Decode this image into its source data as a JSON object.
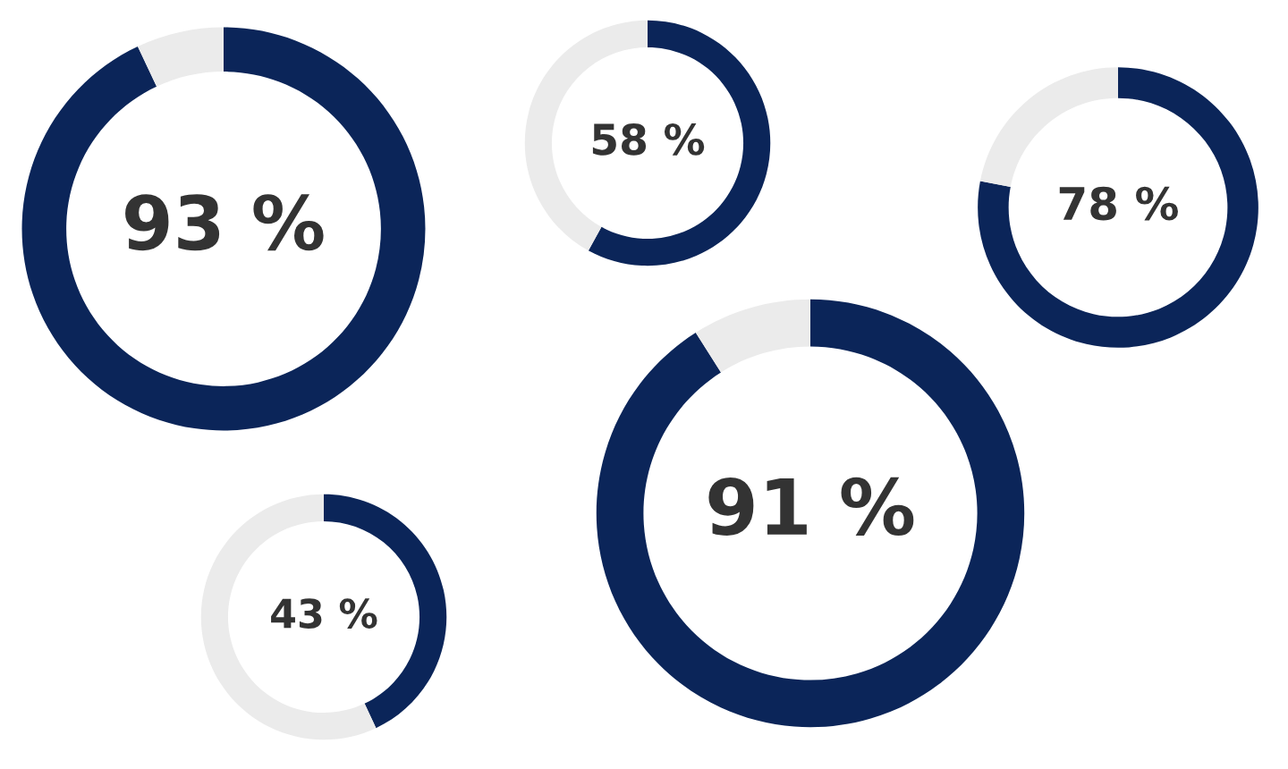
{
  "chart_data": [
    {
      "type": "donut",
      "categories": [
        null,
        null
      ],
      "values": [
        93,
        7
      ],
      "colors": [
        "#0b2559",
        "#ebebeb"
      ],
      "annotations": [
        "93 %"
      ]
    },
    {
      "type": "donut",
      "categories": [
        null,
        null
      ],
      "values": [
        58,
        42
      ],
      "colors": [
        "#0b2559",
        "#ebebeb"
      ],
      "annotations": [
        "58 %"
      ]
    },
    {
      "type": "donut",
      "categories": [
        null,
        null
      ],
      "values": [
        78,
        22
      ],
      "colors": [
        "#0b2559",
        "#ebebeb"
      ],
      "annotations": [
        "78 %"
      ]
    },
    {
      "type": "donut",
      "categories": [
        null,
        null
      ],
      "values": [
        91,
        9
      ],
      "colors": [
        "#0b2559",
        "#ebebeb"
      ],
      "annotations": [
        "91 %"
      ]
    },
    {
      "type": "donut",
      "categories": [
        null,
        null
      ],
      "values": [
        43,
        57
      ],
      "colors": [
        "#0b2559",
        "#ebebeb"
      ],
      "annotations": [
        "43 %"
      ]
    }
  ]
}
